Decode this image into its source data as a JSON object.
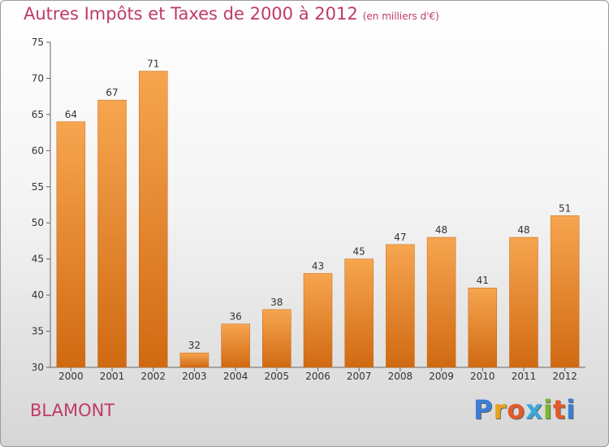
{
  "title": "Autres Impôts et Taxes de 2000 à 2012",
  "subtitle": "(en milliers d'€)",
  "town": "BLAMONT",
  "brand": {
    "letters": [
      "P",
      "r",
      "o",
      "x",
      "i",
      "t",
      "i"
    ],
    "colors": [
      "#3a7fd5",
      "#e8a31c",
      "#e25a2a",
      "#3aa8d8",
      "#7bb82e",
      "#e25a2a",
      "#3a7fd5"
    ]
  },
  "chart_data": {
    "type": "bar",
    "categories": [
      "2000",
      "2001",
      "2002",
      "2003",
      "2004",
      "2005",
      "2006",
      "2007",
      "2008",
      "2009",
      "2010",
      "2011",
      "2012"
    ],
    "values": [
      64,
      67,
      71,
      32,
      36,
      38,
      43,
      45,
      47,
      48,
      41,
      48,
      51
    ],
    "ylim": [
      30,
      75
    ],
    "yticks": [
      30,
      35,
      40,
      45,
      50,
      55,
      60,
      65,
      70,
      75
    ],
    "bar_color_top": "#f7a550",
    "bar_color_bottom": "#d06a12",
    "grid": false,
    "legend": "none"
  }
}
